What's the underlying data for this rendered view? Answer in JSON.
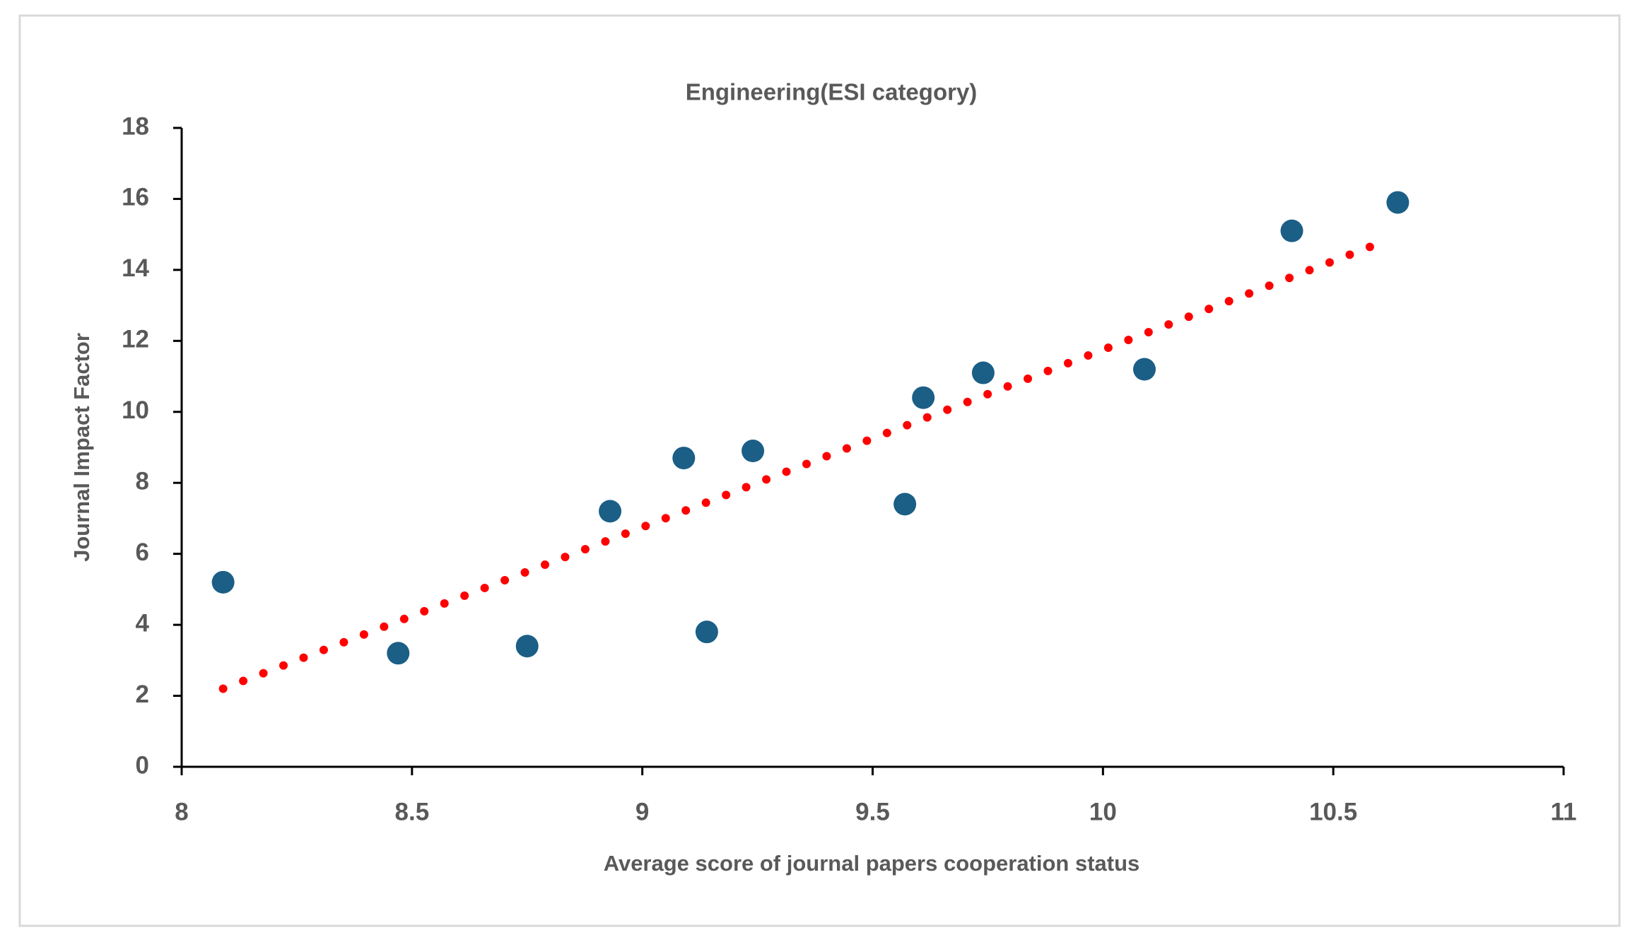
{
  "chart_data": {
    "type": "scatter",
    "title": "Engineering(ESI category)",
    "x_label": "Average score of journal papers cooperation status",
    "y_label": "Journal Impact Factor",
    "x": [
      8.09,
      8.47,
      8.75,
      8.93,
      9.09,
      9.14,
      9.24,
      9.57,
      9.61,
      9.74,
      10.09,
      10.41,
      10.64
    ],
    "values": [
      5.2,
      3.2,
      3.4,
      7.2,
      8.7,
      3.8,
      8.9,
      7.4,
      10.4,
      11.1,
      11.2,
      15.1,
      15.9
    ],
    "color": "#1b5e86",
    "trendline": {
      "x": [
        8.09,
        10.61
      ],
      "y": [
        2.2,
        14.8
      ],
      "color": "#ff0000",
      "style": "dotted"
    },
    "xlim": [
      8,
      11
    ],
    "xticks": [
      8,
      8.5,
      9,
      9.5,
      10,
      10.5,
      11
    ],
    "ylim": [
      0,
      18
    ],
    "yticks": [
      0,
      2,
      4,
      6,
      8,
      10,
      12,
      14,
      16,
      18
    ],
    "grid": false
  }
}
